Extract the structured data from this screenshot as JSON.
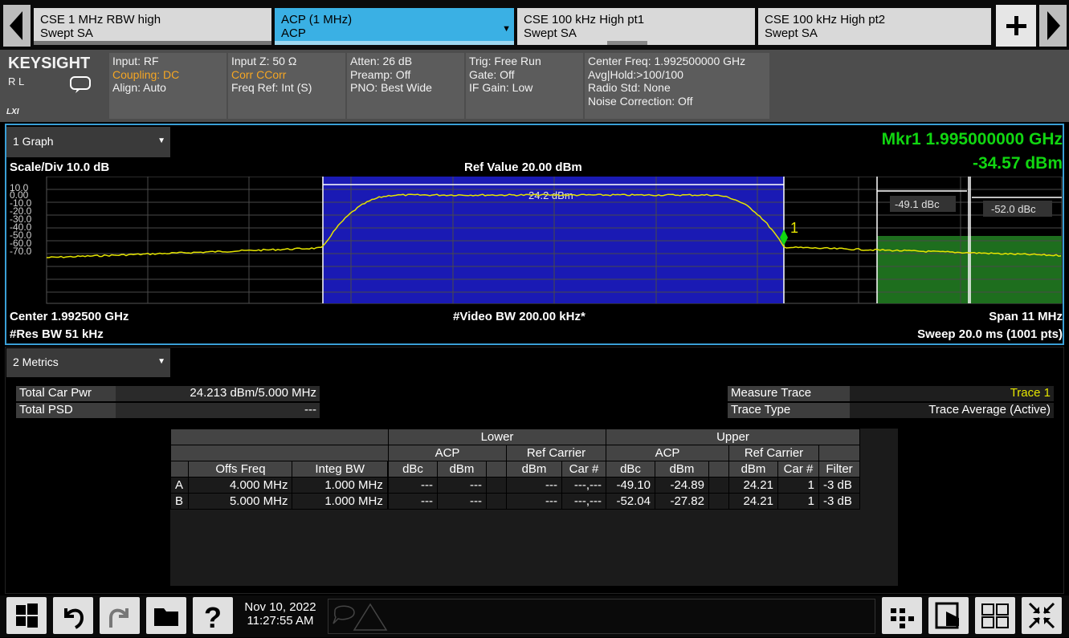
{
  "tabs": [
    {
      "line1": "CSE 1 MHz RBW high",
      "line2": "Swept SA"
    },
    {
      "line1": "ACP (1 MHz)",
      "line2": "ACP"
    },
    {
      "line1": "CSE 100 kHz High pt1",
      "line2": "Swept SA"
    },
    {
      "line1": "CSE 100 kHz High pt2",
      "line2": "Swept SA"
    }
  ],
  "brand": {
    "logo": "KEYSIGHT",
    "rl": "R L",
    "lxi": "LXI"
  },
  "settings": {
    "input": "Input: RF",
    "coupling": "Coupling: DC",
    "align": "Align: Auto",
    "inputz": "Input Z: 50 Ω",
    "corr": "Corr CCorr",
    "freqref": "Freq Ref: Int (S)",
    "atten": "Atten: 26 dB",
    "preamp": "Preamp: Off",
    "pno": "PNO: Best Wide",
    "trig": "Trig: Free Run",
    "gate": "Gate: Off",
    "ifgain": "IF Gain: Low",
    "center": "Center Freq: 1.992500000 GHz",
    "avg": "Avg|Hold:>100/100",
    "radio": "Radio Std: None",
    "noise": "Noise Correction: Off"
  },
  "graph": {
    "window_label": "1 Graph",
    "scale": "Scale/Div 10.0 dB",
    "ref": "Ref Value 20.00 dBm",
    "mkr_freq": "Mkr1  1.995000000 GHz",
    "mkr_val": "-34.57 dBm",
    "yticks": [
      "10.0",
      "0.00",
      "-10.0",
      "-20.0",
      "-30.0",
      "-40.0",
      "-50.0",
      "-60.0",
      "-70.0"
    ],
    "carrier_label": "24.2 dBm",
    "upper_a": "-49.1 dBc",
    "upper_b": "-52.0 dBc",
    "marker_num": "1",
    "center": "Center 1.992500 GHz",
    "res_bw": "#Res BW 51 kHz",
    "video_bw": "#Video BW 200.00 kHz*",
    "span": "Span 11 MHz",
    "sweep": "Sweep 20.0 ms (1001 pts)"
  },
  "metrics": {
    "window_label": "2 Metrics",
    "total_car_pwr_label": "Total Car Pwr",
    "total_car_pwr": "24.213 dBm/5.000 MHz",
    "total_psd_label": "Total PSD",
    "total_psd": "---",
    "measure_trace_label": "Measure Trace",
    "measure_trace": "Trace 1",
    "trace_type_label": "Trace Type",
    "trace_type": "Trace Average (Active)",
    "hdr": {
      "lower": "Lower",
      "upper": "Upper",
      "acp": "ACP",
      "ref_carrier": "Ref Carrier",
      "offs": "Offs Freq",
      "integ": "Integ BW",
      "dbc": "dBc",
      "dbm": "dBm",
      "car": "Car #",
      "filter": "Filter"
    },
    "rows": [
      {
        "id": "A",
        "offs": "4.000 MHz",
        "integ": "1.000 MHz",
        "l_dbc": "---",
        "l_dbm": "---",
        "l_ref_dbm": "---",
        "l_car": "---,---",
        "u_dbc": "-49.10",
        "u_dbm": "-24.89",
        "u_ref_dbm": "24.21",
        "u_car": "1",
        "filter": "-3 dB"
      },
      {
        "id": "B",
        "offs": "5.000 MHz",
        "integ": "1.000 MHz",
        "l_dbc": "---",
        "l_dbm": "---",
        "l_ref_dbm": "---",
        "l_car": "---,---",
        "u_dbc": "-52.04",
        "u_dbm": "-27.82",
        "u_ref_dbm": "24.21",
        "u_car": "1",
        "filter": "-3 dB"
      }
    ]
  },
  "status": {
    "date": "Nov 10, 2022",
    "time": "11:27:55 AM"
  },
  "colors": {
    "trace": "#e5e500",
    "marker": "#00e000",
    "carrier_band": "#1a1ab4",
    "adj_band": "#1e6e1e",
    "accent": "#3ab0e4"
  }
}
